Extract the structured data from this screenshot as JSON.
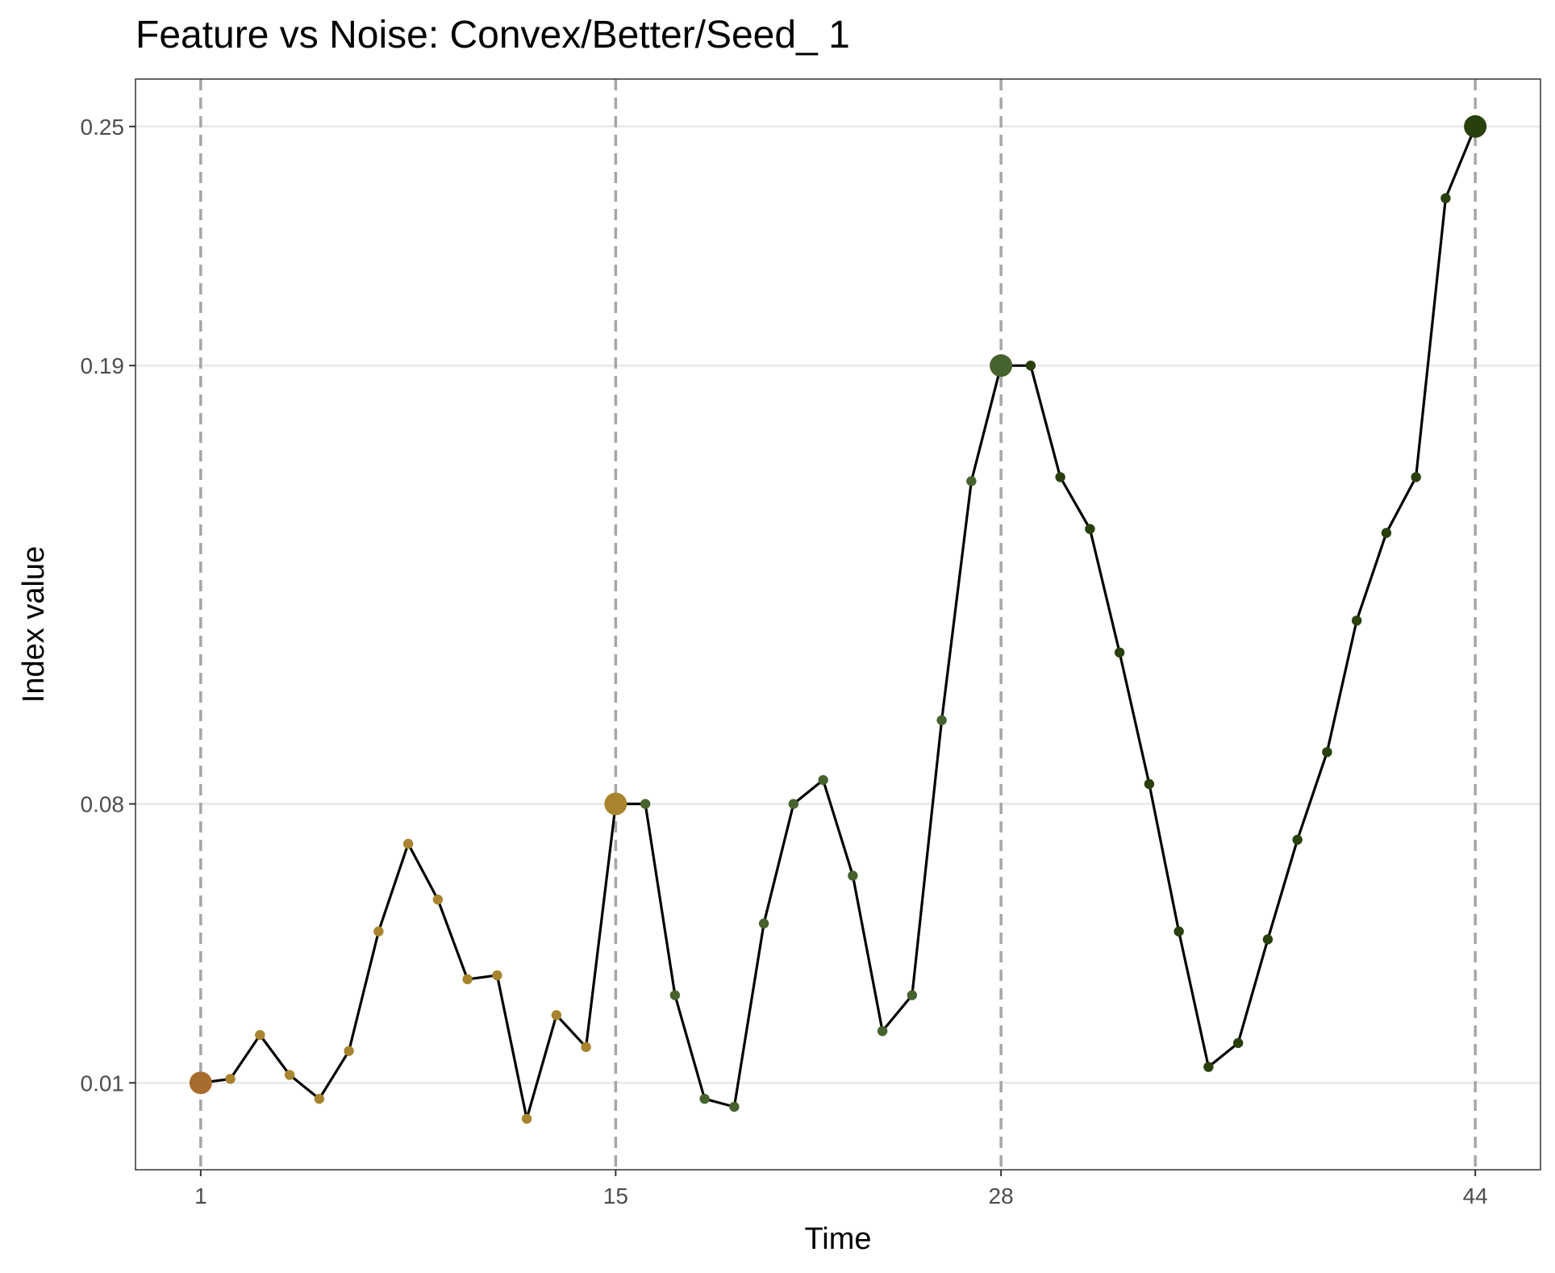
{
  "chart_data": {
    "type": "line",
    "title": "Feature vs Noise: Convex/Better/Seed_ 1",
    "xlabel": "Time",
    "ylabel": "Index value",
    "x_ticks": [
      1,
      15,
      28,
      44
    ],
    "y_ticks": [
      0.01,
      0.08,
      0.19,
      0.25
    ],
    "y_tick_labels": [
      "0.01",
      "0.08",
      "0.19",
      "0.25"
    ],
    "xlim": [
      -1.2,
      46.2
    ],
    "ylim": [
      -0.0118,
      0.2619
    ],
    "grid": "horizontal",
    "vertical_reference_lines": [
      1,
      15,
      28,
      44
    ],
    "highlighted_points": [
      1,
      15,
      28,
      44
    ],
    "colors": {
      "line": "#000000",
      "segment_1": "#a8842e",
      "segment_2": "#46622e",
      "segment_3": "#28400c",
      "first_point": "#a86c2e",
      "reference_line": "#a6a6a6",
      "grid": "#ebebeb"
    },
    "series": [
      {
        "x": [
          1,
          2,
          3,
          4,
          5,
          6,
          7,
          8,
          9,
          10,
          11,
          12,
          13,
          14,
          15,
          16,
          17,
          18,
          19,
          20,
          21,
          22,
          23,
          24,
          25,
          26,
          27,
          28,
          29,
          30,
          31,
          32,
          33,
          34,
          35,
          36,
          37,
          38,
          39,
          40,
          41,
          42,
          43,
          44
        ],
        "values": [
          0.01,
          0.011,
          0.022,
          0.012,
          0.006,
          0.018,
          0.048,
          0.07,
          0.056,
          0.036,
          0.037,
          0.001,
          0.027,
          0.019,
          0.08,
          0.08,
          0.032,
          0.006,
          0.004,
          0.05,
          0.08,
          0.086,
          0.062,
          0.023,
          0.032,
          0.101,
          0.161,
          0.19,
          0.19,
          0.162,
          0.149,
          0.118,
          0.085,
          0.048,
          0.014,
          0.02,
          0.046,
          0.071,
          0.093,
          0.126,
          0.148,
          0.162,
          0.232,
          0.25
        ]
      }
    ]
  }
}
